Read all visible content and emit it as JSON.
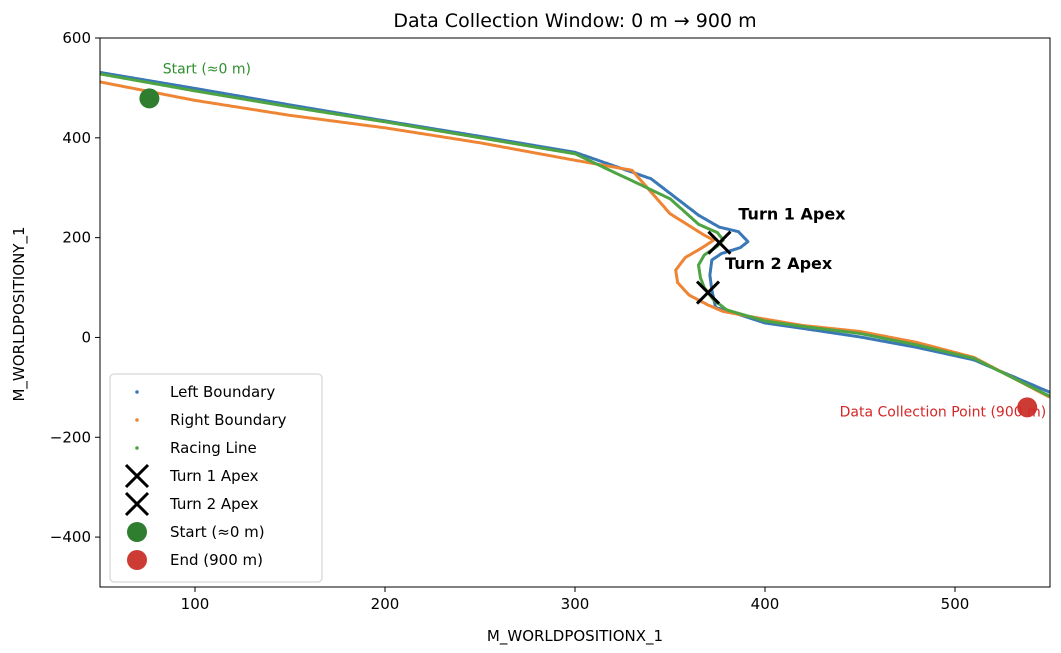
{
  "chart_data": {
    "type": "scatter",
    "title": "Data Collection Window: 0 m → 900 m",
    "xlabel": "M_WORLDPOSITIONX_1",
    "ylabel": "M_WORLDPOSITIONY_1",
    "xlim": [
      50,
      550
    ],
    "ylim": [
      -500,
      600
    ],
    "xticks": [
      100,
      200,
      300,
      400,
      500
    ],
    "yticks": [
      600,
      400,
      200,
      0,
      -200,
      -400
    ],
    "xtick_labels": [
      "100",
      "200",
      "300",
      "400",
      "500"
    ],
    "ytick_labels": [
      "600",
      "400",
      "200",
      "0",
      "−200",
      "−400"
    ],
    "grid": false,
    "legend_position": "lower-left",
    "series": [
      {
        "name": "Left Boundary",
        "color": "#3a78b6",
        "marker": "dot",
        "points": [
          [
            50,
            531
          ],
          [
            100,
            499
          ],
          [
            150,
            466
          ],
          [
            200,
            434
          ],
          [
            250,
            403
          ],
          [
            300,
            371
          ],
          [
            340,
            318
          ],
          [
            365,
            245
          ],
          [
            376,
            221
          ],
          [
            386,
            212
          ],
          [
            391,
            192
          ],
          [
            387,
            180
          ],
          [
            377,
            168
          ],
          [
            372,
            155
          ],
          [
            371,
            125
          ],
          [
            372,
            95
          ],
          [
            374,
            60
          ],
          [
            383,
            50
          ],
          [
            400,
            29
          ],
          [
            420,
            18
          ],
          [
            450,
            1
          ],
          [
            480,
            -20
          ],
          [
            510,
            -45
          ],
          [
            550,
            -110
          ]
        ]
      },
      {
        "name": "Right Boundary",
        "color": "#ee8535",
        "marker": "dot",
        "points": [
          [
            50,
            512
          ],
          [
            100,
            475
          ],
          [
            150,
            445
          ],
          [
            200,
            420
          ],
          [
            250,
            390
          ],
          [
            300,
            355
          ],
          [
            330,
            335
          ],
          [
            350,
            248
          ],
          [
            368,
            205
          ],
          [
            373,
            195
          ],
          [
            367,
            180
          ],
          [
            358,
            160
          ],
          [
            353,
            135
          ],
          [
            354,
            110
          ],
          [
            360,
            85
          ],
          [
            370,
            65
          ],
          [
            378,
            52
          ],
          [
            395,
            40
          ],
          [
            420,
            24
          ],
          [
            450,
            12
          ],
          [
            480,
            -10
          ],
          [
            510,
            -40
          ],
          [
            550,
            -120
          ]
        ]
      },
      {
        "name": "Racing Line",
        "color": "#4ea442",
        "marker": "dot",
        "points": [
          [
            50,
            528
          ],
          [
            100,
            494
          ],
          [
            150,
            462
          ],
          [
            200,
            432
          ],
          [
            250,
            400
          ],
          [
            300,
            368
          ],
          [
            350,
            278
          ],
          [
            365,
            227
          ],
          [
            375,
            210
          ],
          [
            378,
            195
          ],
          [
            375,
            183
          ],
          [
            368,
            165
          ],
          [
            365,
            145
          ],
          [
            366,
            120
          ],
          [
            368,
            100
          ],
          [
            373,
            75
          ],
          [
            380,
            55
          ],
          [
            400,
            33
          ],
          [
            420,
            22
          ],
          [
            450,
            8
          ],
          [
            480,
            -15
          ],
          [
            510,
            -42
          ],
          [
            550,
            -118
          ]
        ]
      }
    ],
    "markers": [
      {
        "name": "Turn 1 Apex",
        "x": 376,
        "y": 190,
        "symbol": "x",
        "color": "#000000"
      },
      {
        "name": "Turn 2 Apex",
        "x": 370,
        "y": 90,
        "symbol": "x",
        "color": "#000000"
      },
      {
        "name": "Start (≈0 m)",
        "x": 76,
        "y": 479,
        "symbol": "circle",
        "color": "#2f7d2f"
      },
      {
        "name": "End (900 m)",
        "x": 538,
        "y": -140,
        "symbol": "circle",
        "color": "#cc3c35"
      }
    ],
    "annotations": [
      {
        "text": "Start (≈0 m)",
        "x": 83,
        "y": 529,
        "color": "#2f8f2f",
        "bold": false,
        "anchor": "start"
      },
      {
        "text": "Turn 1 Apex",
        "x": 386,
        "y": 236,
        "color": "#000000",
        "bold": true,
        "anchor": "start"
      },
      {
        "text": "Turn 2 Apex",
        "x": 379,
        "y": 137,
        "color": "#000000",
        "bold": true,
        "anchor": "start"
      },
      {
        "text": "Data Collection Point (900 m)",
        "x": 548,
        "y": -158,
        "color": "#d62728",
        "bold": false,
        "anchor": "end"
      }
    ],
    "legend": [
      {
        "label": "Left Boundary",
        "symbol": "dot",
        "color": "#3a78b6"
      },
      {
        "label": "Right Boundary",
        "symbol": "dot",
        "color": "#ee8535"
      },
      {
        "label": "Racing Line",
        "symbol": "dot",
        "color": "#4ea442"
      },
      {
        "label": "Turn 1 Apex",
        "symbol": "x",
        "color": "#000000"
      },
      {
        "label": "Turn 2 Apex",
        "symbol": "x",
        "color": "#000000"
      },
      {
        "label": "Start (≈0 m)",
        "symbol": "circle",
        "color": "#2f7d2f"
      },
      {
        "label": "End (900 m)",
        "symbol": "circle",
        "color": "#cc3c35"
      }
    ]
  }
}
